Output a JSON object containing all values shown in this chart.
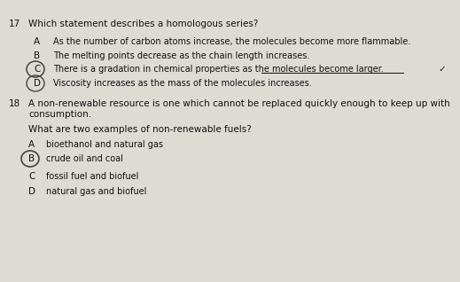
{
  "bg_color": "#dedad4",
  "text_color": "#111111",
  "q17_num": "17",
  "q17_stem": "Which statement describes a homologous series?",
  "q17_A": "As the number of carbon atoms increase, the molecules become more flammable.",
  "q17_B": "The melting points decrease as the chain length increases.",
  "q17_C": "There is a gradation in chemical properties as the molecules become larger.",
  "q17_D": "Viscosity increases as the mass of the molecules increases.",
  "q18_num": "18",
  "q18_line1": "A non-renewable resource is one which cannot be replaced quickly enough to keep up with",
  "q18_line2": "consumption.",
  "q18_sub": "What are two examples of non-renewable fuels?",
  "q18_A": "bioethanol and natural gas",
  "q18_B": "crude oil and coal",
  "q18_C": "fossil fuel and biofuel",
  "q18_D": "natural gas and biofuel",
  "box_color": "#b0aca4",
  "circle_color": "#444444",
  "fs": 7.5,
  "fs_label": 7.5
}
